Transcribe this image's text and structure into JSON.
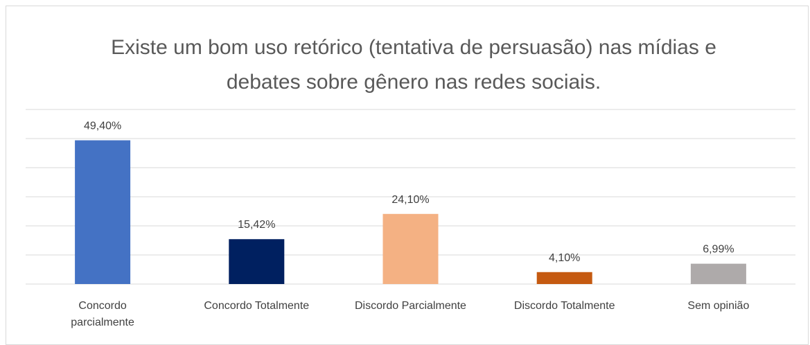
{
  "chart_data": {
    "type": "bar",
    "title": "Existe um bom uso retórico (tentativa de persuasão) nas mídias e debates sobre gênero nas redes sociais.",
    "categories": [
      "Concordo parcialmente",
      "Concordo Totalmente",
      "Discordo Parcialmente",
      "Discordo Totalmente",
      "Sem opinião"
    ],
    "values": [
      49.4,
      15.42,
      24.1,
      4.1,
      6.99
    ],
    "value_labels": [
      "49,40%",
      "15,42%",
      "24,10%",
      "4,10%",
      "6,99%"
    ],
    "colors": [
      "#4472c4",
      "#002060",
      "#f4b183",
      "#c55a11",
      "#aeaaaa"
    ],
    "ylim": [
      0,
      60
    ],
    "yticks": [
      0,
      10,
      20,
      30,
      40,
      50,
      60
    ],
    "grid": true,
    "show_tick_labels": false
  }
}
